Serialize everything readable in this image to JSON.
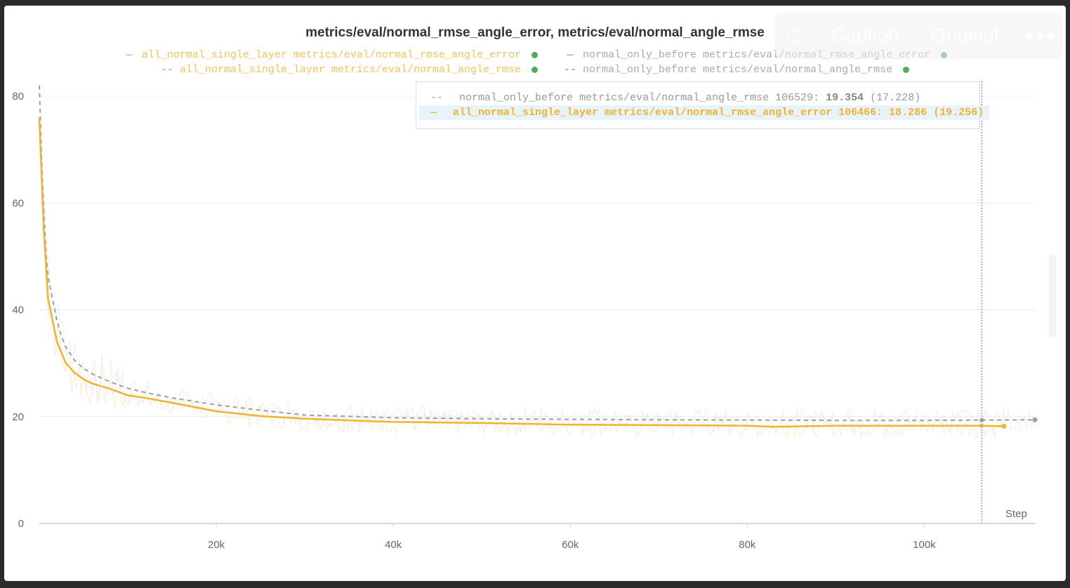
{
  "toolbar": {
    "comment_icon": "comment-icon",
    "caption_label": "Caption",
    "original_label": "Original",
    "more_icon": "more-icon"
  },
  "legend": [
    {
      "symbol": "—",
      "text": "all_normal_single_layer metrics/eval/normal_rmse_angle_error",
      "color": "#f6c35a"
    },
    {
      "symbol": "—",
      "text": "normal_only_before metrics/eval/normal_rmse_angle_error",
      "color": "#aaaaaa"
    },
    {
      "symbol": "--",
      "text": "all_normal_single_layer metrics/eval/normal_angle_rmse",
      "color": "#f6c35a"
    },
    {
      "symbol": "--",
      "text": "normal_only_before metrics/eval/normal_angle_rmse",
      "color": "#aaaaaa"
    }
  ],
  "tooltip": {
    "row1": {
      "symbol": "--",
      "name": "normal_only_before metrics/eval/normal_angle_rmse",
      "step": "106529:",
      "value": "19.354",
      "smoothed": "(17.228)"
    },
    "row2": {
      "symbol": "—",
      "name": "all_normal_single_layer metrics/eval/normal_rmse_angle_error",
      "step": "106466:",
      "value": "18.286",
      "smoothed": "(19.256)"
    }
  },
  "colors": {
    "orange": "#f0b32f",
    "gray": "#9aa0a6",
    "cursor": "#3b7ddd",
    "status": "#4caf50"
  },
  "chart_data": {
    "type": "line",
    "title": "metrics/eval/normal_rmse_angle_error, metrics/eval/normal_angle_rmse",
    "xlabel": "Step",
    "ylabel": "",
    "xlim": [
      0,
      112500
    ],
    "ylim": [
      0,
      80
    ],
    "xticks": [
      20000,
      40000,
      60000,
      80000,
      100000
    ],
    "xtick_labels": [
      "20k",
      "40k",
      "60k",
      "80k",
      "100k"
    ],
    "yticks": [
      0,
      20,
      40,
      60,
      80
    ],
    "ytick_labels": [
      "0",
      "20",
      "40",
      "60",
      "80"
    ],
    "grid": true,
    "legend_position": "top-center",
    "cursor_x": 106500,
    "series": [
      {
        "name": "all_normal_single_layer metrics/eval/normal_rmse_angle_error",
        "color": "#f0b32f",
        "dash": "solid",
        "x": [
          0,
          500,
          1000,
          1500,
          2000,
          2500,
          3000,
          4000,
          5000,
          6000,
          8000,
          10000,
          12000,
          15000,
          20000,
          25000,
          30000,
          40000,
          50000,
          60000,
          70000,
          80000,
          83000,
          90000,
          100000,
          106466,
          109000
        ],
        "y": [
          76,
          55,
          42,
          38,
          34,
          32,
          30,
          28.2,
          27,
          26.2,
          25.2,
          24,
          23.5,
          22.6,
          21,
          20.1,
          19.6,
          19.0,
          18.8,
          18.5,
          18.4,
          18.3,
          18.1,
          18.3,
          18.3,
          18.286,
          18.2
        ]
      },
      {
        "name": "normal_only_before metrics/eval/normal_angle_rmse",
        "color": "#9aa0a6",
        "dash": "dashed",
        "x": [
          0,
          300,
          700,
          1000,
          1500,
          2000,
          2500,
          3000,
          4000,
          5000,
          6000,
          8000,
          10000,
          12000,
          15000,
          20000,
          25000,
          30000,
          40000,
          50000,
          60000,
          70000,
          80000,
          90000,
          100000,
          106529,
          112500
        ],
        "y": [
          82,
          66,
          52,
          46,
          42,
          38,
          35,
          33,
          30.5,
          29,
          28,
          26.5,
          25.3,
          24.5,
          23.5,
          22.2,
          21.2,
          20.3,
          19.8,
          19.6,
          19.5,
          19.4,
          19.35,
          19.3,
          19.3,
          19.354,
          19.4
        ]
      }
    ]
  }
}
